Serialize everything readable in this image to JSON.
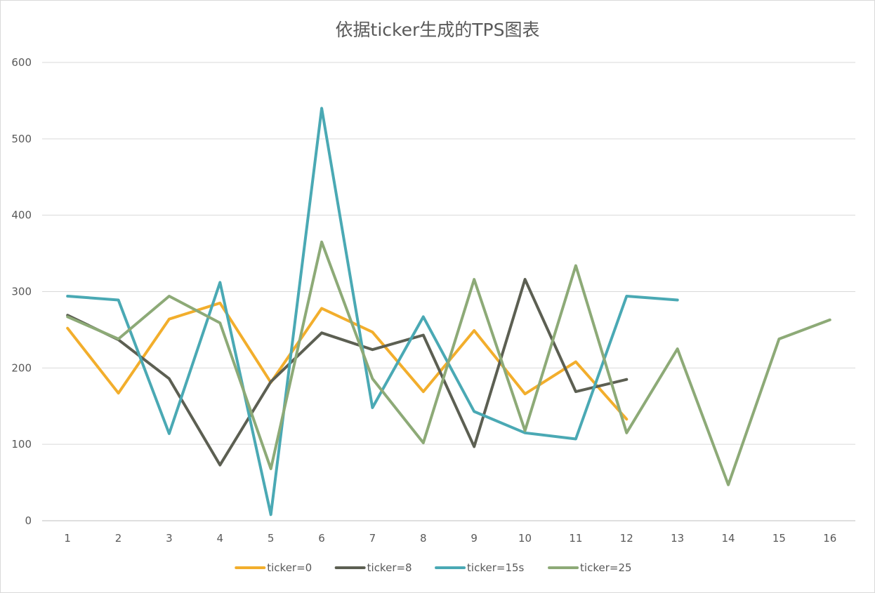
{
  "chart_data": {
    "type": "line",
    "title": "依据ticker生成的TPS图表",
    "categories": [
      "1",
      "2",
      "3",
      "4",
      "5",
      "6",
      "7",
      "8",
      "9",
      "10",
      "11",
      "12",
      "13",
      "14",
      "15",
      "16"
    ],
    "ylim": [
      0,
      600
    ],
    "yticks": [
      0,
      100,
      200,
      300,
      400,
      500,
      600
    ],
    "grid": true,
    "legend_position": "bottom",
    "series": [
      {
        "name": "ticker=0",
        "color": "#f2ae2c",
        "values": [
          252,
          167,
          264,
          285,
          181,
          278,
          247,
          169,
          249,
          166,
          208,
          133,
          null,
          null,
          null,
          null
        ]
      },
      {
        "name": "ticker=8",
        "color": "#5c5f52",
        "values": [
          269,
          237,
          186,
          73,
          182,
          246,
          224,
          243,
          97,
          316,
          169,
          185,
          null,
          null,
          null,
          null
        ]
      },
      {
        "name": "ticker=15s",
        "color": "#4aa9b4",
        "values": [
          294,
          289,
          114,
          312,
          8,
          540,
          148,
          267,
          143,
          115,
          107,
          294,
          289,
          null,
          null,
          null
        ]
      },
      {
        "name": "ticker=25",
        "color": "#8daa77",
        "values": [
          267,
          238,
          294,
          259,
          68,
          365,
          186,
          102,
          316,
          118,
          334,
          115,
          225,
          47,
          238,
          263
        ]
      }
    ]
  }
}
